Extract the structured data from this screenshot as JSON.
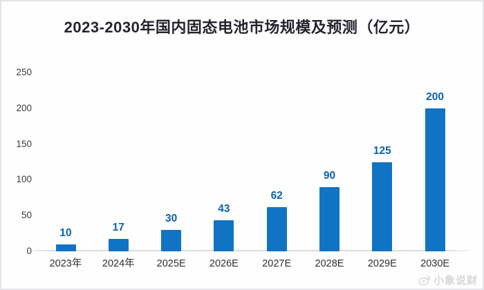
{
  "title": "2023-2030年国内固态电池市场规模及预测（亿元）",
  "watermark": {
    "text": "小象说财",
    "icon": "weibo-eye-icon"
  },
  "chart_data": {
    "type": "bar",
    "title": "2023-2030年国内固态电池市场规模及预测（亿元）",
    "categories": [
      "2023年",
      "2024年",
      "2025E",
      "2026E",
      "2027E",
      "2028E",
      "2029E",
      "2030E"
    ],
    "values": [
      10,
      17,
      30,
      43,
      62,
      90,
      125,
      200
    ],
    "xlabel": "",
    "ylabel": "",
    "ylim": [
      0,
      250
    ],
    "yticks": [
      0,
      50,
      100,
      150,
      200,
      250
    ],
    "grid": false,
    "legend": false,
    "bar_color": "#1173c4",
    "value_label_color": "#0e60b2",
    "axis_text_color": "#2e2e2e"
  }
}
